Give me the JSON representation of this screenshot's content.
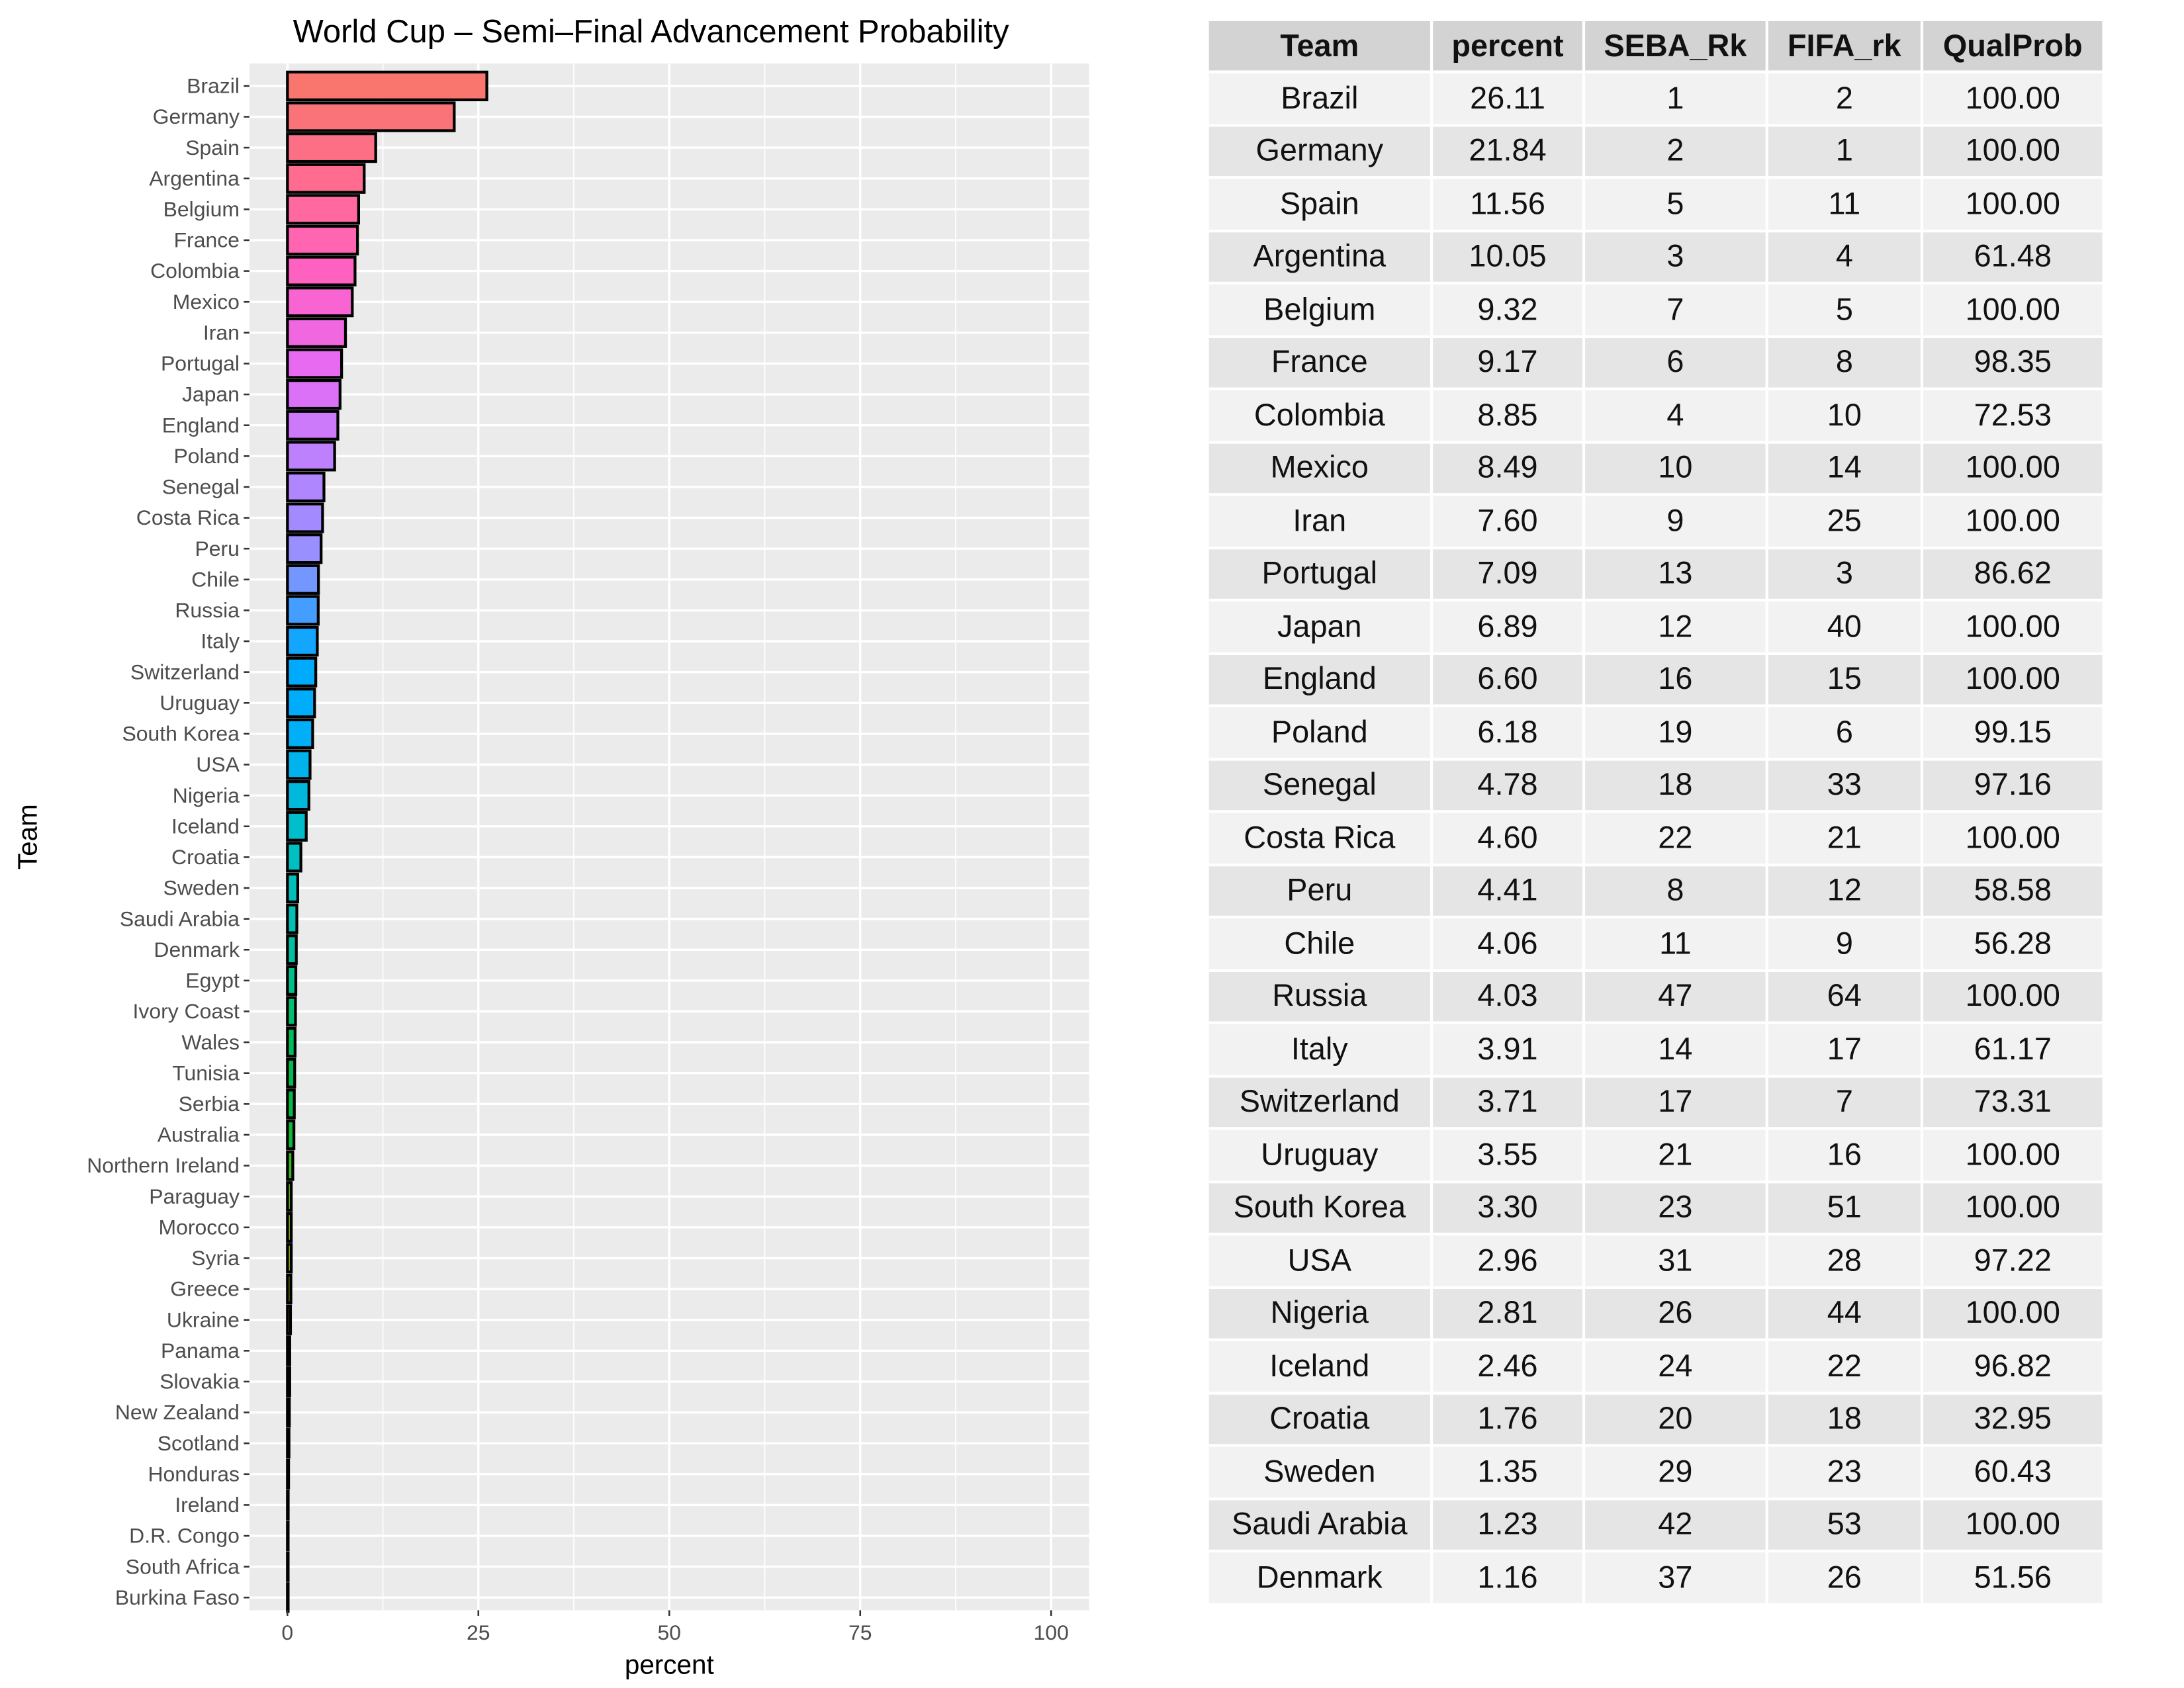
{
  "chart_data": {
    "type": "bar",
    "orientation": "horizontal",
    "title": "World Cup – Semi–Final Advancement Probability",
    "xlabel": "percent",
    "ylabel": "Team",
    "xlim": [
      0,
      100
    ],
    "xticks": [
      "0",
      "25",
      "50",
      "75",
      "100"
    ],
    "xtick_values": [
      0,
      25,
      50,
      75,
      100
    ],
    "grid": true,
    "bar_outline": "#000000",
    "panel_bg": "#EBEBEB",
    "categories": [
      "Brazil",
      "Germany",
      "Spain",
      "Argentina",
      "Belgium",
      "France",
      "Colombia",
      "Mexico",
      "Iran",
      "Portugal",
      "Japan",
      "England",
      "Poland",
      "Senegal",
      "Costa Rica",
      "Peru",
      "Chile",
      "Russia",
      "Italy",
      "Switzerland",
      "Uruguay",
      "South Korea",
      "USA",
      "Nigeria",
      "Iceland",
      "Croatia",
      "Sweden",
      "Saudi Arabia",
      "Denmark",
      "Egypt",
      "Ivory Coast",
      "Wales",
      "Tunisia",
      "Serbia",
      "Australia",
      "Northern Ireland",
      "Paraguay",
      "Morocco",
      "Syria",
      "Greece",
      "Ukraine",
      "Panama",
      "Slovakia",
      "New Zealand",
      "Scotland",
      "Honduras",
      "Ireland",
      "D.R. Congo",
      "South Africa",
      "Burkina Faso"
    ],
    "values": [
      26.11,
      21.84,
      11.56,
      10.05,
      9.32,
      9.17,
      8.85,
      8.49,
      7.6,
      7.09,
      6.89,
      6.6,
      6.18,
      4.78,
      4.6,
      4.41,
      4.06,
      4.03,
      3.91,
      3.71,
      3.55,
      3.3,
      2.96,
      2.81,
      2.46,
      1.76,
      1.35,
      1.23,
      1.16,
      1.1,
      1.05,
      1.0,
      0.95,
      0.9,
      0.85,
      0.7,
      0.5,
      0.5,
      0.5,
      0.45,
      0.4,
      0.3,
      0.3,
      0.25,
      0.2,
      0.15,
      0.1,
      0.05,
      0.03,
      0.02
    ],
    "fill_anchors": [
      "#F8766D",
      "#FF6C91",
      "#FF61C3",
      "#E76BF3",
      "#B983FF",
      "#9590FF",
      "#00A9FF",
      "#00B0F6",
      "#00BFC4",
      "#00C0AF",
      "#00BD5C",
      "#00BA38",
      "#7CAE00",
      "#A3A500",
      "#C49A00",
      "#D89000",
      "#E58700"
    ]
  },
  "table": {
    "headers": [
      "Team",
      "percent",
      "SEBA_Rk",
      "FIFA_rk",
      "QualProb"
    ],
    "rows": [
      [
        "Brazil",
        "26.11",
        "1",
        "2",
        "100.00"
      ],
      [
        "Germany",
        "21.84",
        "2",
        "1",
        "100.00"
      ],
      [
        "Spain",
        "11.56",
        "5",
        "11",
        "100.00"
      ],
      [
        "Argentina",
        "10.05",
        "3",
        "4",
        "61.48"
      ],
      [
        "Belgium",
        "9.32",
        "7",
        "5",
        "100.00"
      ],
      [
        "France",
        "9.17",
        "6",
        "8",
        "98.35"
      ],
      [
        "Colombia",
        "8.85",
        "4",
        "10",
        "72.53"
      ],
      [
        "Mexico",
        "8.49",
        "10",
        "14",
        "100.00"
      ],
      [
        "Iran",
        "7.60",
        "9",
        "25",
        "100.00"
      ],
      [
        "Portugal",
        "7.09",
        "13",
        "3",
        "86.62"
      ],
      [
        "Japan",
        "6.89",
        "12",
        "40",
        "100.00"
      ],
      [
        "England",
        "6.60",
        "16",
        "15",
        "100.00"
      ],
      [
        "Poland",
        "6.18",
        "19",
        "6",
        "99.15"
      ],
      [
        "Senegal",
        "4.78",
        "18",
        "33",
        "97.16"
      ],
      [
        "Costa Rica",
        "4.60",
        "22",
        "21",
        "100.00"
      ],
      [
        "Peru",
        "4.41",
        "8",
        "12",
        "58.58"
      ],
      [
        "Chile",
        "4.06",
        "11",
        "9",
        "56.28"
      ],
      [
        "Russia",
        "4.03",
        "47",
        "64",
        "100.00"
      ],
      [
        "Italy",
        "3.91",
        "14",
        "17",
        "61.17"
      ],
      [
        "Switzerland",
        "3.71",
        "17",
        "7",
        "73.31"
      ],
      [
        "Uruguay",
        "3.55",
        "21",
        "16",
        "100.00"
      ],
      [
        "South Korea",
        "3.30",
        "23",
        "51",
        "100.00"
      ],
      [
        "USA",
        "2.96",
        "31",
        "28",
        "97.22"
      ],
      [
        "Nigeria",
        "2.81",
        "26",
        "44",
        "100.00"
      ],
      [
        "Iceland",
        "2.46",
        "24",
        "22",
        "96.82"
      ],
      [
        "Croatia",
        "1.76",
        "20",
        "18",
        "32.95"
      ],
      [
        "Sweden",
        "1.35",
        "29",
        "23",
        "60.43"
      ],
      [
        "Saudi Arabia",
        "1.23",
        "42",
        "53",
        "100.00"
      ],
      [
        "Denmark",
        "1.16",
        "37",
        "26",
        "51.56"
      ]
    ]
  }
}
